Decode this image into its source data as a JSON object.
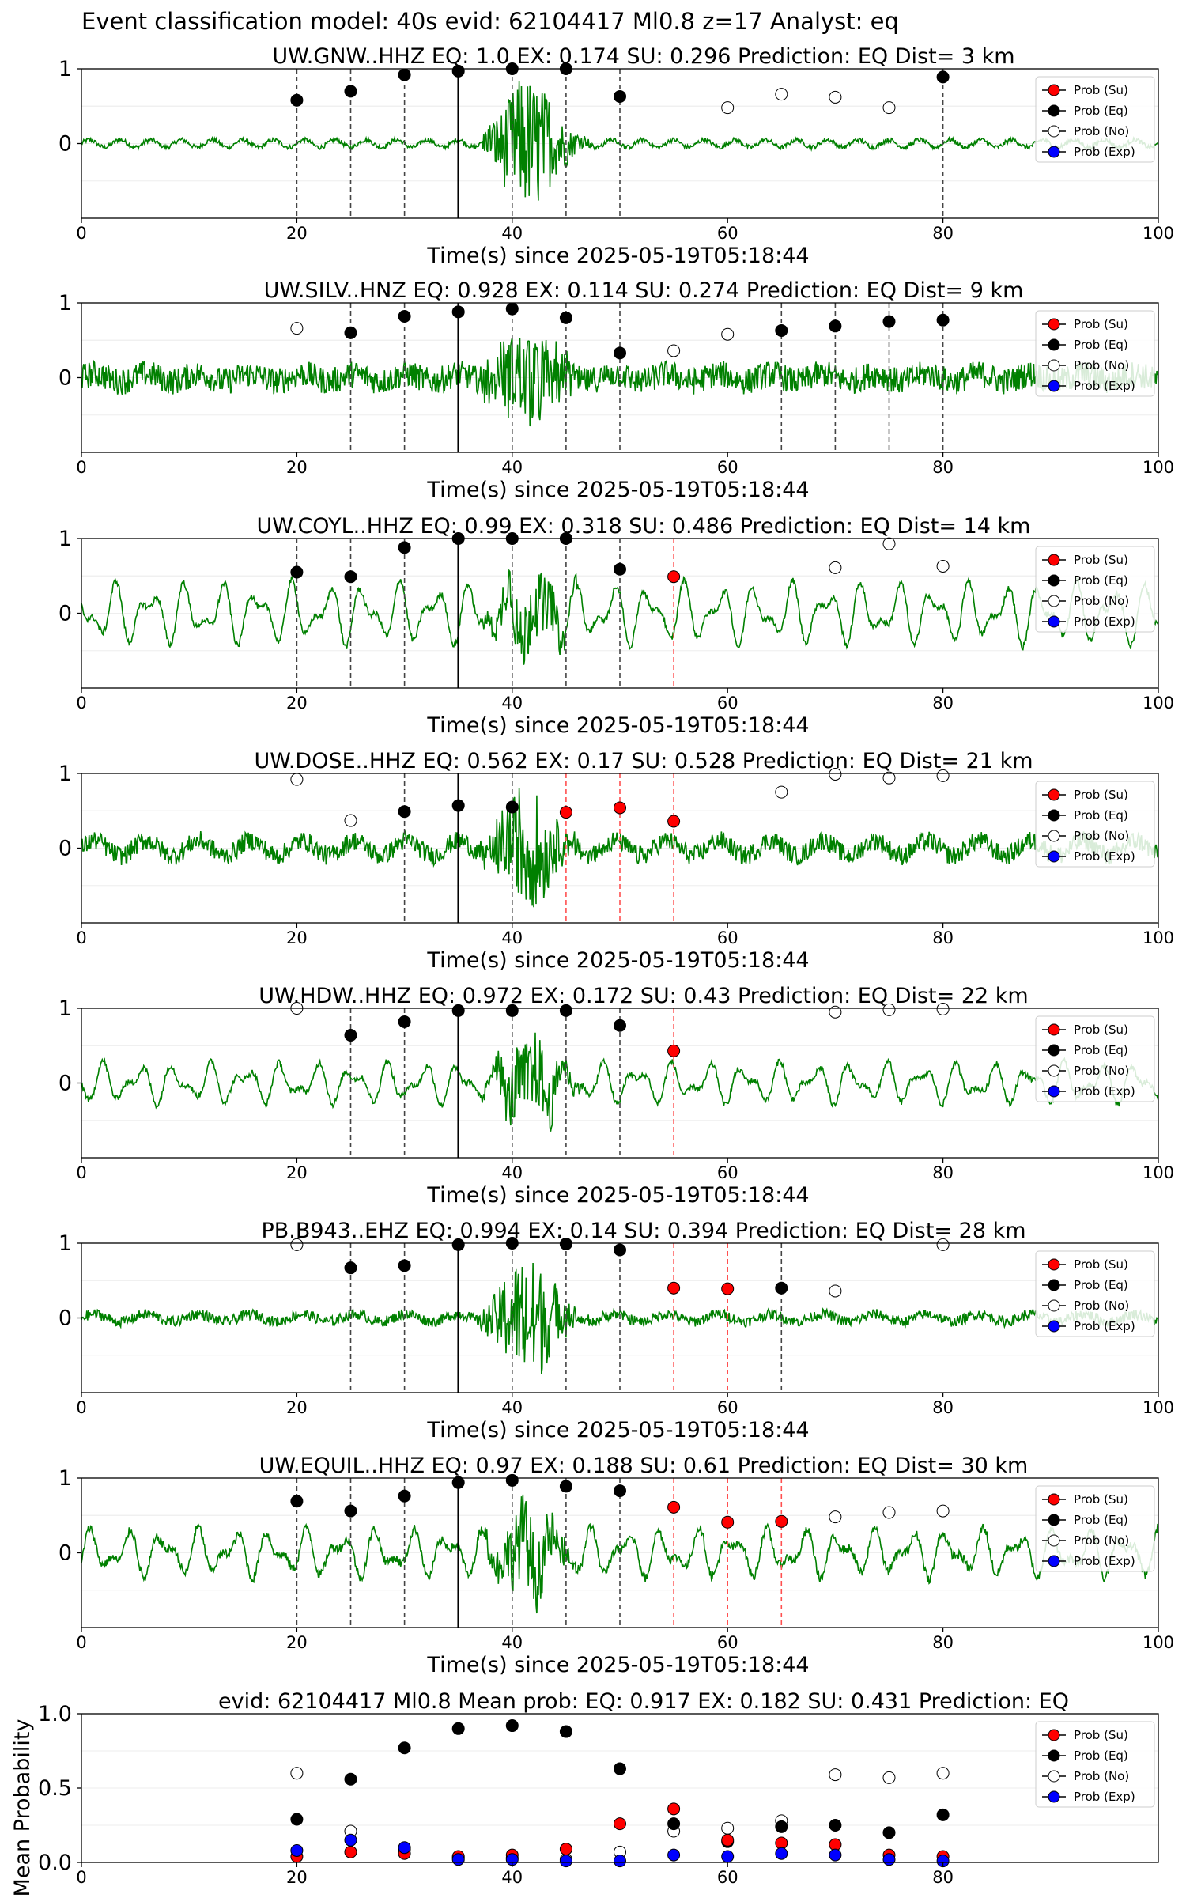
{
  "suptitle": "Event classification model: 40s evid: 62104417 Ml0.8 z=17 Analyst: eq",
  "legend": [
    "Prob (Su)",
    "Prob (Eq)",
    "Prob (No)",
    "Prob (Exp)"
  ],
  "colors": {
    "su": "#ff0000",
    "eq": "#000000",
    "no": "#ffffff",
    "exp": "#0000ff",
    "trace": "#008000"
  },
  "chart_data": [
    {
      "type": "scatter",
      "title": "UW.GNW..HHZ   EQ: 1.0  EX: 0.174  SU: 0.296   Prediction: EQ    Dist= 3 km",
      "xlabel": "Time(s) since 2025-05-19T05:18:44",
      "xlim": [
        0,
        100
      ],
      "xticks": [
        0,
        20,
        40,
        60,
        80,
        100
      ],
      "ylim": [
        -1,
        1
      ],
      "yticks": [
        0,
        1
      ],
      "pick": 35,
      "vlines": [
        {
          "x": 20,
          "c": "eq"
        },
        {
          "x": 25,
          "c": "eq"
        },
        {
          "x": 30,
          "c": "eq"
        },
        {
          "x": 40,
          "c": "eq"
        },
        {
          "x": 45,
          "c": "eq"
        },
        {
          "x": 50,
          "c": "eq"
        },
        {
          "x": 80,
          "c": "eq"
        }
      ],
      "waveform": {
        "style": "smooth",
        "noise": 0.03,
        "base": 0.05,
        "eventAmp": 0.9
      },
      "series": [
        {
          "name": "Prob (Eq)",
          "x": [
            20,
            25,
            30,
            35,
            40,
            45,
            50,
            80
          ],
          "y": [
            0.58,
            0.7,
            0.92,
            0.97,
            1.0,
            1.0,
            0.63,
            0.89
          ]
        },
        {
          "name": "Prob (No)",
          "x": [
            60,
            65,
            70,
            75
          ],
          "y": [
            0.48,
            0.66,
            0.62,
            0.48
          ]
        }
      ]
    },
    {
      "type": "scatter",
      "title": "UW.SILV..HNZ   EQ: 0.928  EX: 0.114  SU: 0.274   Prediction: EQ    Dist= 9 km",
      "xlabel": "Time(s) since 2025-05-19T05:18:44",
      "xlim": [
        0,
        100
      ],
      "xticks": [
        0,
        20,
        40,
        60,
        80,
        100
      ],
      "ylim": [
        -1,
        1
      ],
      "yticks": [
        0,
        1
      ],
      "pick": 35,
      "vlines": [
        {
          "x": 25,
          "c": "eq"
        },
        {
          "x": 30,
          "c": "eq"
        },
        {
          "x": 40,
          "c": "eq"
        },
        {
          "x": 45,
          "c": "eq"
        },
        {
          "x": 50,
          "c": "eq"
        },
        {
          "x": 65,
          "c": "eq"
        },
        {
          "x": 70,
          "c": "eq"
        },
        {
          "x": 75,
          "c": "eq"
        },
        {
          "x": 80,
          "c": "eq"
        }
      ],
      "waveform": {
        "style": "noisy",
        "noise": 0.18,
        "base": 0.05,
        "eventAmp": 0.7
      },
      "series": [
        {
          "name": "Prob (Eq)",
          "x": [
            25,
            30,
            35,
            40,
            45,
            50,
            65,
            70,
            75,
            80
          ],
          "y": [
            0.6,
            0.82,
            0.88,
            0.92,
            0.8,
            0.33,
            0.63,
            0.69,
            0.75,
            0.77
          ]
        },
        {
          "name": "Prob (No)",
          "x": [
            20,
            55,
            60
          ],
          "y": [
            0.66,
            0.36,
            0.58
          ]
        }
      ]
    },
    {
      "type": "scatter",
      "title": "UW.COYL..HHZ   EQ: 0.99  EX: 0.318  SU: 0.486   Prediction: EQ    Dist= 14 km",
      "xlabel": "Time(s) since 2025-05-19T05:18:44",
      "xlim": [
        0,
        100
      ],
      "xticks": [
        0,
        20,
        40,
        60,
        80,
        100
      ],
      "ylim": [
        -1,
        1
      ],
      "yticks": [
        0,
        1
      ],
      "pick": 35,
      "vlines": [
        {
          "x": 20,
          "c": "eq"
        },
        {
          "x": 25,
          "c": "eq"
        },
        {
          "x": 30,
          "c": "eq"
        },
        {
          "x": 40,
          "c": "eq"
        },
        {
          "x": 45,
          "c": "eq"
        },
        {
          "x": 50,
          "c": "eq"
        },
        {
          "x": 55,
          "c": "su"
        }
      ],
      "waveform": {
        "style": "wave",
        "noise": 0.04,
        "base": 0.45,
        "eventAmp": 0.5
      },
      "series": [
        {
          "name": "Prob (Su)",
          "x": [
            55
          ],
          "y": [
            0.49
          ]
        },
        {
          "name": "Prob (Eq)",
          "x": [
            20,
            25,
            30,
            35,
            40,
            45,
            50
          ],
          "y": [
            0.55,
            0.49,
            0.88,
            1.0,
            1.0,
            1.0,
            0.59
          ]
        },
        {
          "name": "Prob (No)",
          "x": [
            70,
            75,
            80
          ],
          "y": [
            0.61,
            0.93,
            0.63
          ]
        }
      ]
    },
    {
      "type": "scatter",
      "title": "UW.DOSE..HHZ   EQ: 0.562  EX: 0.17  SU: 0.528   Prediction: EQ    Dist= 21 km",
      "xlabel": "Time(s) since 2025-05-19T05:18:44",
      "xlim": [
        0,
        100
      ],
      "xticks": [
        0,
        20,
        40,
        60,
        80,
        100
      ],
      "ylim": [
        -1,
        1
      ],
      "yticks": [
        0,
        1
      ],
      "pick": 35,
      "vlines": [
        {
          "x": 30,
          "c": "eq"
        },
        {
          "x": 40,
          "c": "eq"
        },
        {
          "x": 45,
          "c": "su"
        },
        {
          "x": 50,
          "c": "su"
        },
        {
          "x": 55,
          "c": "su"
        }
      ],
      "waveform": {
        "style": "noisy",
        "noise": 0.13,
        "base": 0.1,
        "eventAmp": 0.75
      },
      "series": [
        {
          "name": "Prob (Su)",
          "x": [
            45,
            50,
            55
          ],
          "y": [
            0.48,
            0.54,
            0.36
          ]
        },
        {
          "name": "Prob (Eq)",
          "x": [
            30,
            35,
            40
          ],
          "y": [
            0.49,
            0.57,
            0.55
          ]
        },
        {
          "name": "Prob (No)",
          "x": [
            20,
            25,
            65,
            70,
            75,
            80
          ],
          "y": [
            0.92,
            0.37,
            0.75,
            0.99,
            0.94,
            0.97
          ]
        }
      ]
    },
    {
      "type": "scatter",
      "title": "UW.HDW..HHZ   EQ: 0.972  EX: 0.172  SU: 0.43   Prediction: EQ    Dist= 22 km",
      "xlabel": "Time(s) since 2025-05-19T05:18:44",
      "xlim": [
        0,
        100
      ],
      "xticks": [
        0,
        20,
        40,
        60,
        80,
        100
      ],
      "ylim": [
        -1,
        1
      ],
      "yticks": [
        0,
        1
      ],
      "pick": 35,
      "vlines": [
        {
          "x": 25,
          "c": "eq"
        },
        {
          "x": 30,
          "c": "eq"
        },
        {
          "x": 40,
          "c": "eq"
        },
        {
          "x": 45,
          "c": "eq"
        },
        {
          "x": 50,
          "c": "eq"
        },
        {
          "x": 55,
          "c": "su"
        }
      ],
      "waveform": {
        "style": "wave",
        "noise": 0.04,
        "base": 0.3,
        "eventAmp": 0.55
      },
      "series": [
        {
          "name": "Prob (Su)",
          "x": [
            55
          ],
          "y": [
            0.43
          ]
        },
        {
          "name": "Prob (Eq)",
          "x": [
            25,
            30,
            35,
            40,
            45,
            50
          ],
          "y": [
            0.64,
            0.82,
            0.97,
            0.97,
            0.97,
            0.77
          ]
        },
        {
          "name": "Prob (No)",
          "x": [
            20,
            70,
            75,
            80
          ],
          "y": [
            1.0,
            0.95,
            0.98,
            0.99
          ]
        }
      ]
    },
    {
      "type": "scatter",
      "title": "PB.B943..EHZ   EQ: 0.994  EX: 0.14  SU: 0.394   Prediction: EQ    Dist= 28 km",
      "xlabel": "Time(s) since 2025-05-19T05:18:44",
      "xlim": [
        0,
        100
      ],
      "xticks": [
        0,
        20,
        40,
        60,
        80,
        100
      ],
      "ylim": [
        -1,
        1
      ],
      "yticks": [
        0,
        1
      ],
      "pick": 35,
      "vlines": [
        {
          "x": 25,
          "c": "eq"
        },
        {
          "x": 30,
          "c": "eq"
        },
        {
          "x": 40,
          "c": "eq"
        },
        {
          "x": 45,
          "c": "eq"
        },
        {
          "x": 50,
          "c": "eq"
        },
        {
          "x": 55,
          "c": "su"
        },
        {
          "x": 60,
          "c": "su"
        },
        {
          "x": 65,
          "c": "eq"
        }
      ],
      "waveform": {
        "style": "noisy",
        "noise": 0.07,
        "base": 0.05,
        "eventAmp": 0.85
      },
      "series": [
        {
          "name": "Prob (Su)",
          "x": [
            55,
            60
          ],
          "y": [
            0.4,
            0.39
          ]
        },
        {
          "name": "Prob (Eq)",
          "x": [
            25,
            30,
            35,
            40,
            45,
            50,
            65
          ],
          "y": [
            0.67,
            0.7,
            0.98,
            1.0,
            0.99,
            0.91,
            0.4
          ]
        },
        {
          "name": "Prob (No)",
          "x": [
            20,
            70,
            80
          ],
          "y": [
            0.98,
            0.36,
            0.98
          ]
        }
      ]
    },
    {
      "type": "scatter",
      "title": "UW.EQUIL..HHZ   EQ: 0.97  EX: 0.188  SU: 0.61   Prediction: EQ    Dist= 30 km",
      "xlabel": "Time(s) since 2025-05-19T05:18:44",
      "xlim": [
        0,
        100
      ],
      "xticks": [
        0,
        20,
        40,
        60,
        80,
        100
      ],
      "ylim": [
        -1,
        1
      ],
      "yticks": [
        0,
        1
      ],
      "pick": 35,
      "vlines": [
        {
          "x": 20,
          "c": "eq"
        },
        {
          "x": 25,
          "c": "eq"
        },
        {
          "x": 30,
          "c": "eq"
        },
        {
          "x": 40,
          "c": "eq"
        },
        {
          "x": 45,
          "c": "eq"
        },
        {
          "x": 50,
          "c": "eq"
        },
        {
          "x": 55,
          "c": "su"
        },
        {
          "x": 60,
          "c": "su"
        },
        {
          "x": 65,
          "c": "su"
        }
      ],
      "waveform": {
        "style": "wave",
        "noise": 0.06,
        "base": 0.35,
        "eventAmp": 0.55
      },
      "series": [
        {
          "name": "Prob (Su)",
          "x": [
            55,
            60,
            65
          ],
          "y": [
            0.61,
            0.41,
            0.42
          ]
        },
        {
          "name": "Prob (Eq)",
          "x": [
            20,
            25,
            30,
            35,
            40,
            45,
            50
          ],
          "y": [
            0.69,
            0.56,
            0.76,
            0.94,
            0.97,
            0.89,
            0.83
          ]
        },
        {
          "name": "Prob (No)",
          "x": [
            70,
            75,
            80
          ],
          "y": [
            0.48,
            0.54,
            0.56
          ]
        }
      ]
    },
    {
      "type": "scatter",
      "title": "evid: 62104417  Ml0.8   Mean prob:   EQ: 0.917  EX: 0.182  SU: 0.431   Prediction: EQ",
      "xlabel": "",
      "ylabel": "Mean Probability",
      "xlim": [
        0,
        100
      ],
      "xticks": [
        0,
        20,
        40,
        60,
        80
      ],
      "ylim": [
        0,
        1
      ],
      "yticks": [
        0.0,
        0.5,
        1.0
      ],
      "ytick_labels": [
        "0.0",
        "0.5",
        "1.0"
      ],
      "series": [
        {
          "name": "Prob (Su)",
          "x": [
            20,
            25,
            30,
            35,
            40,
            45,
            50,
            55,
            60,
            65,
            70,
            75,
            80
          ],
          "y": [
            0.04,
            0.07,
            0.06,
            0.04,
            0.05,
            0.09,
            0.26,
            0.36,
            0.15,
            0.13,
            0.12,
            0.05,
            0.04
          ]
        },
        {
          "name": "Prob (Eq)",
          "x": [
            20,
            25,
            30,
            35,
            40,
            45,
            50,
            55,
            60,
            65,
            70,
            75,
            80
          ],
          "y": [
            0.29,
            0.56,
            0.77,
            0.9,
            0.92,
            0.88,
            0.63,
            0.26,
            0.14,
            0.24,
            0.25,
            0.2,
            0.32
          ]
        },
        {
          "name": "Prob (No)",
          "x": [
            20,
            25,
            30,
            35,
            40,
            45,
            50,
            55,
            60,
            65,
            70,
            75,
            80
          ],
          "y": [
            0.6,
            0.21,
            0.09,
            0.03,
            0.03,
            0.02,
            0.07,
            0.21,
            0.23,
            0.28,
            0.59,
            0.57,
            0.6
          ]
        },
        {
          "name": "Prob (Exp)",
          "x": [
            20,
            25,
            30,
            35,
            40,
            45,
            50,
            55,
            60,
            65,
            70,
            75,
            80
          ],
          "y": [
            0.08,
            0.15,
            0.1,
            0.02,
            0.02,
            0.01,
            0.01,
            0.05,
            0.04,
            0.06,
            0.05,
            0.02,
            0.01
          ]
        }
      ]
    }
  ]
}
